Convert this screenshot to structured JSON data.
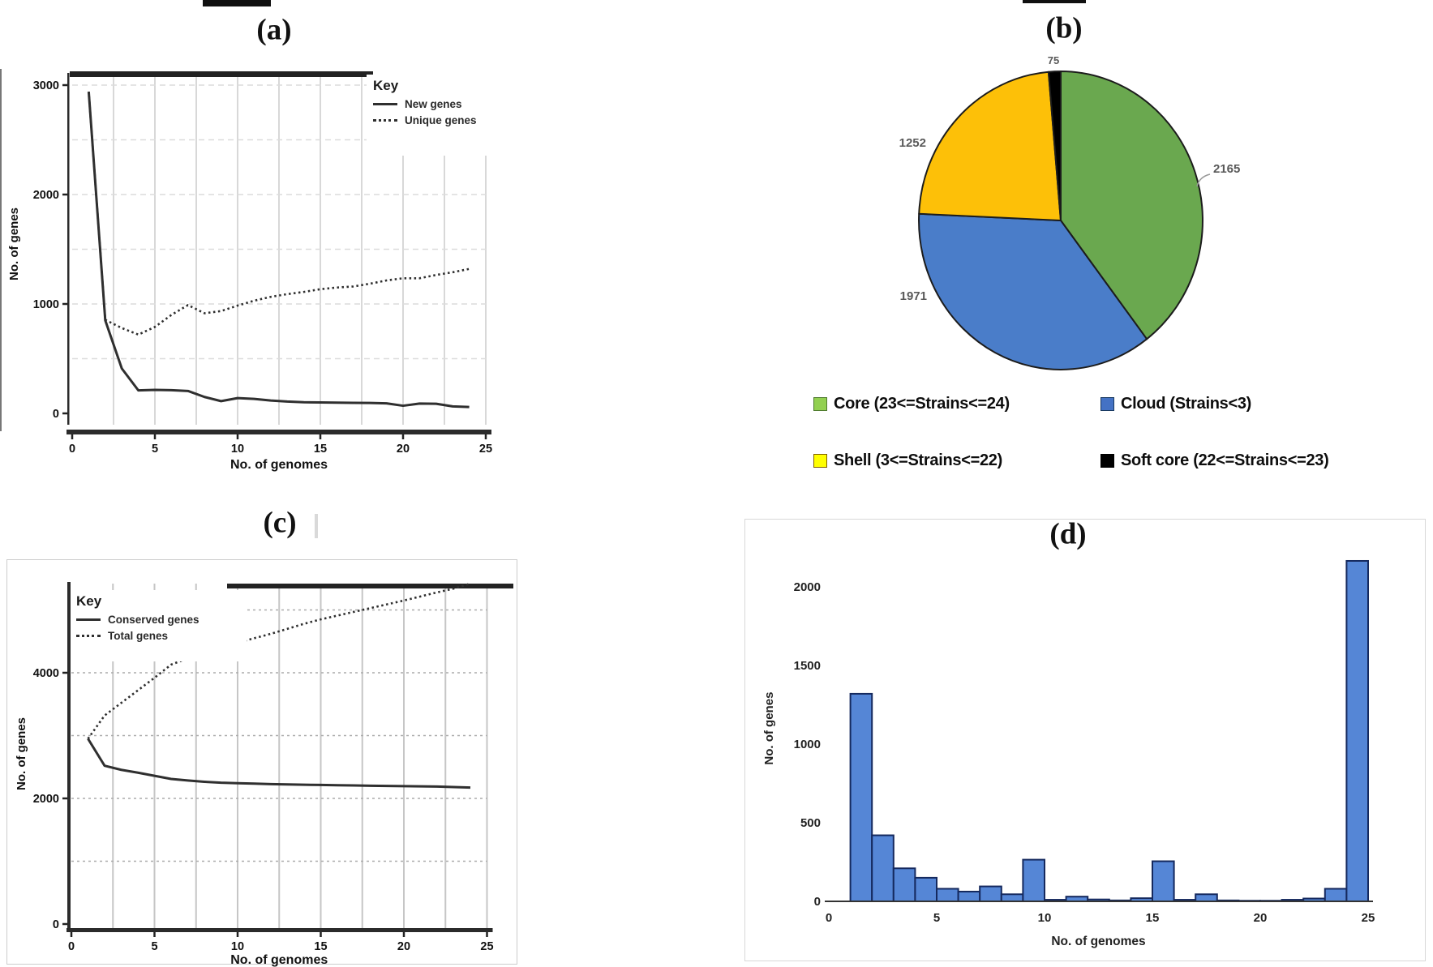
{
  "panels": {
    "a": {
      "label": "(a)"
    },
    "b": {
      "label": "(b)"
    },
    "c": {
      "label": "(c)"
    },
    "d": {
      "label": "(d)"
    }
  },
  "chart_data": [
    {
      "id": "a",
      "type": "line",
      "panel_label": "(a)",
      "xlabel": "No. of genomes",
      "ylabel": "No. of genes",
      "xlim": [
        0,
        25
      ],
      "ylim": [
        0,
        3000
      ],
      "xticks": [
        0,
        5,
        10,
        15,
        20,
        25
      ],
      "yticks": [
        0,
        1000,
        2000,
        3000
      ],
      "grid": true,
      "legend_title": "Key",
      "legend_position": "top-right",
      "x": [
        1,
        2,
        3,
        4,
        5,
        6,
        7,
        8,
        9,
        10,
        11,
        12,
        13,
        14,
        15,
        16,
        17,
        18,
        19,
        20,
        21,
        22,
        23,
        24
      ],
      "series": [
        {
          "name": "New genes",
          "style": "solid",
          "color": "#2f2f2f",
          "values": [
            2940,
            850,
            410,
            210,
            215,
            212,
            205,
            150,
            112,
            140,
            132,
            118,
            108,
            102,
            100,
            98,
            96,
            95,
            92,
            70,
            90,
            88,
            64,
            58
          ]
        },
        {
          "name": "Unique genes",
          "style": "dotted",
          "color": "#2f2f2f",
          "values": [
            2940,
            855,
            780,
            720,
            790,
            900,
            990,
            915,
            935,
            985,
            1030,
            1065,
            1090,
            1110,
            1135,
            1150,
            1160,
            1185,
            1215,
            1235,
            1235,
            1265,
            1290,
            1320
          ]
        }
      ]
    },
    {
      "id": "b",
      "type": "pie",
      "panel_label": "(b)",
      "direction": "clockwise",
      "start_angle_deg": 0,
      "slices": [
        {
          "name": "Core",
          "legend_label": "Core (23<=Strains<=24)",
          "value": 2165,
          "value_label": "2165",
          "color": "#6aa84f",
          "swatch_color": "#92d050",
          "swatch_border": "#4e7a2e"
        },
        {
          "name": "Cloud",
          "legend_label": "Cloud (Strains<3)",
          "value": 1971,
          "value_label": "1971",
          "color": "#4a7dc9",
          "swatch_color": "#4472c4",
          "swatch_border": "#17375e"
        },
        {
          "name": "Shell",
          "legend_label": "Shell (3<=Strains<=22)",
          "value": 1252,
          "value_label": "1252",
          "color": "#fdc008",
          "swatch_color": "#ffff00",
          "swatch_border": "#7f6000"
        },
        {
          "name": "Soft core",
          "legend_label": "Soft core (22<=Strains<=23)",
          "value": 75,
          "value_label": "75",
          "color": "#000000",
          "swatch_color": "#000000",
          "swatch_border": "#000000"
        }
      ],
      "legend_rows": [
        [
          "Core",
          "Cloud"
        ],
        [
          "Shell",
          "Soft core"
        ]
      ]
    },
    {
      "id": "c",
      "type": "line",
      "panel_label": "(c)",
      "xlabel": "No. of genomes",
      "ylabel": "No. of genes",
      "xlim": [
        0,
        25
      ],
      "ylim": [
        0,
        5500
      ],
      "xticks": [
        0,
        5,
        10,
        15,
        20,
        25
      ],
      "yticks": [
        0,
        2000,
        4000
      ],
      "grid": true,
      "legend_title": "Key",
      "legend_position": "top-left",
      "x": [
        1,
        2,
        3,
        4,
        5,
        6,
        7,
        8,
        9,
        10,
        11,
        12,
        13,
        14,
        15,
        16,
        17,
        18,
        19,
        20,
        21,
        22,
        23,
        24
      ],
      "series": [
        {
          "name": "Conserved genes",
          "style": "solid",
          "color": "#2f2f2f",
          "values": [
            2950,
            2520,
            2455,
            2410,
            2360,
            2310,
            2285,
            2265,
            2250,
            2242,
            2235,
            2228,
            2222,
            2218,
            2214,
            2210,
            2206,
            2202,
            2198,
            2195,
            2192,
            2188,
            2180,
            2172
          ]
        },
        {
          "name": "Total genes",
          "style": "dotted",
          "color": "#2f2f2f",
          "values": [
            2950,
            3320,
            3520,
            3720,
            3920,
            4130,
            4230,
            4310,
            4390,
            4480,
            4550,
            4620,
            4700,
            4780,
            4850,
            4910,
            4970,
            5030,
            5090,
            5150,
            5215,
            5280,
            5340,
            5420
          ]
        }
      ]
    },
    {
      "id": "d",
      "type": "bar",
      "panel_label": "(d)",
      "xlabel": "No. of genomes",
      "ylabel": "No. of genes",
      "xlim": [
        0,
        25
      ],
      "ylim": [
        0,
        2200
      ],
      "xticks": [
        0,
        5,
        10,
        15,
        20,
        25
      ],
      "yticks": [
        0,
        500,
        1000,
        1500,
        2000
      ],
      "grid": false,
      "bar_color": "#5586d6",
      "bar_border": "#15295e",
      "x": [
        1,
        2,
        3,
        4,
        5,
        6,
        7,
        8,
        9,
        10,
        11,
        12,
        13,
        14,
        15,
        16,
        17,
        18,
        19,
        20,
        21,
        22,
        23,
        24
      ],
      "values": [
        1320,
        420,
        210,
        150,
        80,
        62,
        95,
        45,
        265,
        10,
        30,
        12,
        6,
        20,
        255,
        10,
        45,
        6,
        4,
        4,
        10,
        18,
        80,
        2165
      ]
    }
  ]
}
